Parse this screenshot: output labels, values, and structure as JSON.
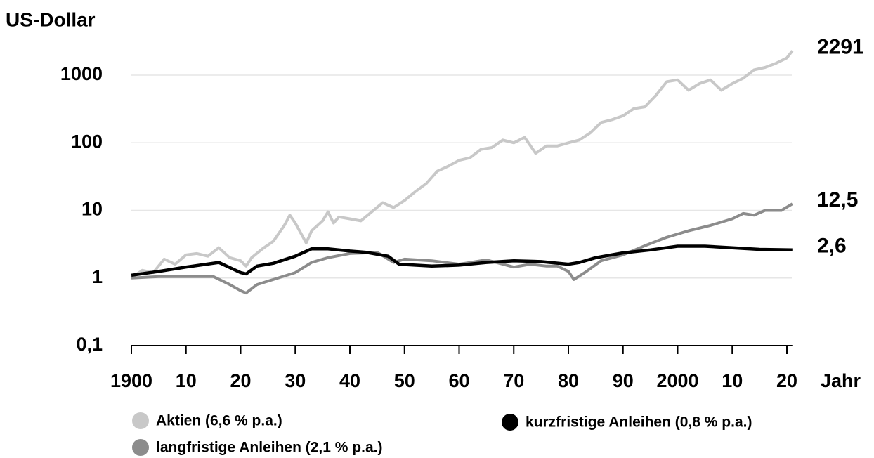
{
  "chart_data": {
    "type": "line",
    "y_label": "US-Dollar",
    "x_label": "Jahr",
    "log_y": true,
    "grid": true,
    "xlim": [
      1900,
      2021
    ],
    "ylim": [
      0.1,
      2291
    ],
    "xticks": [
      1900,
      {
        "value": 1910,
        "label": "10"
      },
      {
        "value": 1920,
        "label": "20"
      },
      {
        "value": 1930,
        "label": "30"
      },
      {
        "value": 1940,
        "label": "40"
      },
      {
        "value": 1950,
        "label": "50"
      },
      {
        "value": 1960,
        "label": "60"
      },
      {
        "value": 1970,
        "label": "70"
      },
      {
        "value": 1980,
        "label": "80"
      },
      {
        "value": 1990,
        "label": "90"
      },
      2000,
      {
        "value": 2010,
        "label": "10"
      },
      {
        "value": 2020,
        "label": "20"
      }
    ],
    "yticks": [
      {
        "value": 0.1,
        "label": "0,1"
      },
      1,
      10,
      100,
      1000
    ],
    "series": [
      {
        "name": "Aktien (6,6 % p.a.)",
        "color": "#c8c8c8",
        "x": [
          1900,
          1902,
          1904,
          1906,
          1908,
          1910,
          1912,
          1914,
          1916,
          1918,
          1920,
          1921,
          1922,
          1924,
          1926,
          1928,
          1929,
          1930,
          1932,
          1933,
          1935,
          1936,
          1937,
          1938,
          1940,
          1942,
          1944,
          1946,
          1948,
          1950,
          1952,
          1954,
          1956,
          1958,
          1960,
          1962,
          1964,
          1966,
          1968,
          1970,
          1972,
          1974,
          1976,
          1978,
          1980,
          1982,
          1984,
          1986,
          1988,
          1990,
          1992,
          1994,
          1996,
          1998,
          2000,
          2002,
          2004,
          2006,
          2008,
          2010,
          2012,
          2014,
          2016,
          2018,
          2020,
          2021
        ],
        "values": [
          1.0,
          1.3,
          1.2,
          1.9,
          1.6,
          2.2,
          2.3,
          2.1,
          2.8,
          2.0,
          1.8,
          1.5,
          2.0,
          2.7,
          3.5,
          6,
          8.5,
          6.5,
          3.3,
          5,
          7,
          9.5,
          6.5,
          8,
          7.5,
          7,
          9.5,
          13,
          11,
          14,
          19,
          25,
          38,
          45,
          55,
          60,
          80,
          85,
          110,
          100,
          120,
          70,
          90,
          90,
          100,
          110,
          140,
          200,
          220,
          250,
          320,
          340,
          500,
          800,
          850,
          600,
          750,
          850,
          600,
          750,
          900,
          1200,
          1300,
          1500,
          1800,
          2291
        ]
      },
      {
        "name": "kurzfristige Anleihen (0,8 % p.a.)",
        "color": "#000000",
        "x": [
          1900,
          1905,
          1910,
          1916,
          1920,
          1921,
          1923,
          1926,
          1930,
          1933,
          1936,
          1940,
          1943,
          1947,
          1949,
          1955,
          1960,
          1965,
          1970,
          1975,
          1980,
          1982,
          1985,
          1990,
          1995,
          2000,
          2005,
          2010,
          2015,
          2021
        ],
        "values": [
          1.1,
          1.25,
          1.45,
          1.7,
          1.2,
          1.15,
          1.5,
          1.65,
          2.1,
          2.7,
          2.7,
          2.5,
          2.4,
          2.1,
          1.6,
          1.5,
          1.55,
          1.7,
          1.8,
          1.75,
          1.6,
          1.7,
          2.0,
          2.35,
          2.6,
          2.95,
          2.95,
          2.8,
          2.65,
          2.6
        ]
      },
      {
        "name": "langfristige Anleihen (2,1 % p.a.)",
        "color": "#8c8c8c",
        "x": [
          1900,
          1905,
          1910,
          1915,
          1918,
          1920,
          1921,
          1923,
          1926,
          1930,
          1933,
          1936,
          1940,
          1945,
          1948,
          1950,
          1955,
          1960,
          1965,
          1970,
          1973,
          1976,
          1978,
          1980,
          1981,
          1983,
          1986,
          1990,
          1994,
          1998,
          2002,
          2006,
          2010,
          2012,
          2014,
          2016,
          2019,
          2021
        ],
        "values": [
          1.0,
          1.05,
          1.05,
          1.05,
          0.8,
          0.65,
          0.6,
          0.8,
          0.95,
          1.2,
          1.7,
          2.0,
          2.3,
          2.4,
          1.7,
          1.9,
          1.8,
          1.6,
          1.85,
          1.45,
          1.6,
          1.5,
          1.5,
          1.25,
          0.95,
          1.2,
          1.8,
          2.2,
          3.0,
          4.0,
          5.0,
          6.0,
          7.5,
          9,
          8.5,
          10,
          10,
          12.5
        ]
      }
    ],
    "annotations": [
      {
        "text": "2291",
        "value": 2291
      },
      {
        "text": "12,5",
        "value": 12.5
      },
      {
        "text": "2,6",
        "value": 2.6
      }
    ]
  }
}
